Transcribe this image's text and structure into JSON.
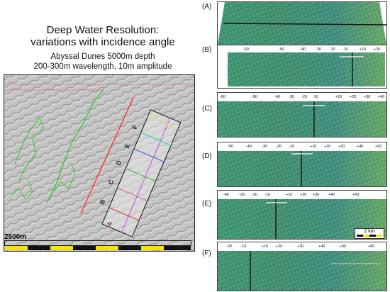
{
  "title": "Deep Water Resolution:\nvariations with incidence angle",
  "subtitle_line1": "Abyssal Dunes 5000m depth",
  "subtitle_line2": "200-300m wavelength, 10m amplitude",
  "left_map": {
    "scale_label": "2500m",
    "strip_labels": [
      "A",
      "B",
      "C",
      "D",
      "E",
      "F"
    ]
  },
  "panels": [
    {
      "label": "(A)",
      "ticks": []
    },
    {
      "label": "(B)",
      "ticks": [
        "-60",
        "-50",
        "-40",
        "-30",
        "-20",
        "-10",
        "+10",
        "+20"
      ]
    },
    {
      "label": "(C)",
      "ticks": [
        "-60",
        "-50",
        "-40",
        "-30",
        "-20",
        "-10",
        "+10",
        "+20",
        "+30",
        "+40"
      ]
    },
    {
      "label": "(D)",
      "ticks": [
        "-50",
        "-40",
        "-30",
        "-20",
        "-10",
        "+10",
        "+20",
        "+30",
        "+40",
        "+50"
      ]
    },
    {
      "label": "(E)",
      "ticks": [
        "-40",
        "-30",
        "-20",
        "-10",
        "+10",
        "+20",
        "+30",
        "+40",
        "+50"
      ]
    },
    {
      "label": "(F)",
      "ticks": [
        "-20",
        "-10",
        "+10",
        "+20",
        "+30",
        "+40",
        "+50",
        "+60"
      ]
    }
  ],
  "km_scale": "2 km",
  "colors": {
    "swath_green": "#3f9a6a",
    "swath_blue": "#3f7fa8",
    "swath_yellow": "#c9c24a",
    "scale_yellow": "#f2e600",
    "scale_black": "#111111"
  }
}
